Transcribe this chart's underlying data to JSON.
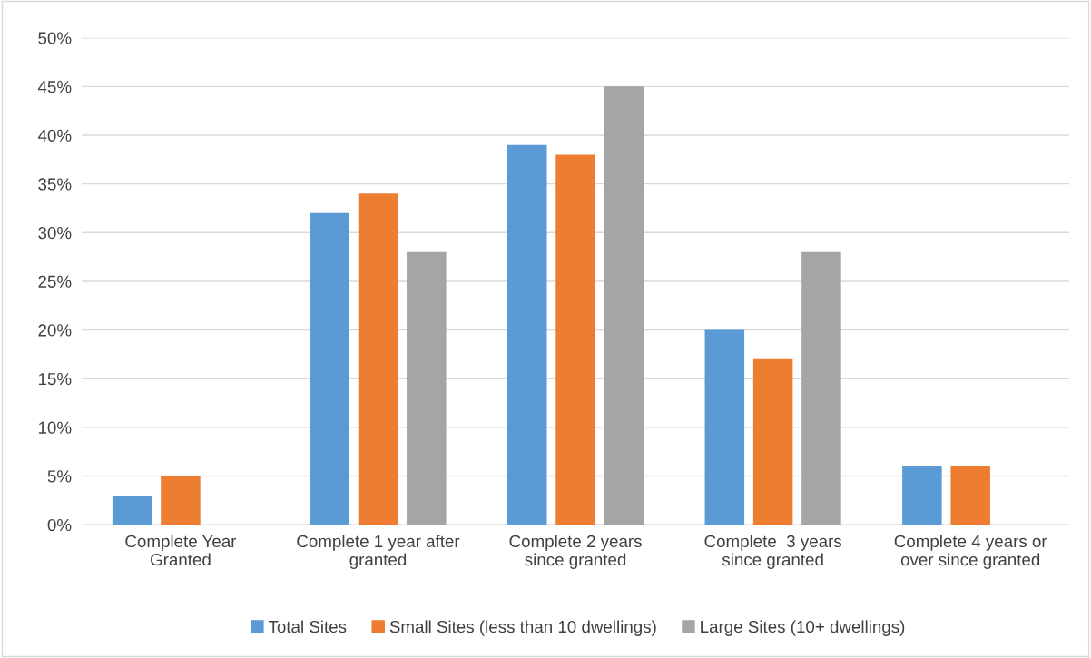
{
  "chart_data": {
    "type": "bar",
    "categories": [
      "Complete Year\nGranted",
      "Complete 1 year after\ngranted",
      "Complete 2 years\nsince granted",
      "Complete  3 years\nsince granted",
      "Complete 4 years or\nover since granted"
    ],
    "series": [
      {
        "name": "Total Sites",
        "color": "#5b9bd5",
        "values": [
          3,
          32,
          39,
          20,
          6
        ]
      },
      {
        "name": "Small Sites (less than 10 dwellings)",
        "color": "#ed7d31",
        "values": [
          5,
          34,
          38,
          17,
          6
        ]
      },
      {
        "name": "Large Sites (10+ dwellings)",
        "color": "#a5a5a5",
        "values": [
          0,
          28,
          45,
          28,
          0
        ]
      }
    ],
    "ylim": [
      0,
      50
    ],
    "yticks": [
      {
        "value": 0,
        "label": "0%"
      },
      {
        "value": 5,
        "label": "5%"
      },
      {
        "value": 10,
        "label": "10%"
      },
      {
        "value": 15,
        "label": "15%"
      },
      {
        "value": 20,
        "label": "20%"
      },
      {
        "value": 25,
        "label": "25%"
      },
      {
        "value": 30,
        "label": "30%"
      },
      {
        "value": 35,
        "label": "35%"
      },
      {
        "value": 40,
        "label": "40%"
      },
      {
        "value": 45,
        "label": "45%"
      },
      {
        "value": 50,
        "label": "50%"
      }
    ],
    "grid": "y",
    "legend": "bottom"
  }
}
